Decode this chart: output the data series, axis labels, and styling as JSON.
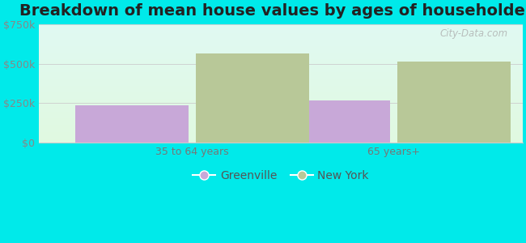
{
  "title": "Breakdown of mean house values by ages of householders",
  "categories": [
    "35 to 64 years",
    "65 years+"
  ],
  "series": {
    "Greenville": [
      235000,
      265000
    ],
    "New York": [
      565000,
      515000
    ]
  },
  "bar_colors": {
    "Greenville": "#c8a8d8",
    "New York": "#b8c898"
  },
  "ylim": [
    0,
    750000
  ],
  "yticks": [
    0,
    250000,
    500000,
    750000
  ],
  "ytick_labels": [
    "$0",
    "$250k",
    "$500k",
    "$750k"
  ],
  "background_color": "#00eaea",
  "title_fontsize": 14,
  "legend_fontsize": 10,
  "tick_fontsize": 9,
  "bar_width": 0.28,
  "group_positions": [
    0.28,
    0.78
  ],
  "watermark": "City-Data.com"
}
